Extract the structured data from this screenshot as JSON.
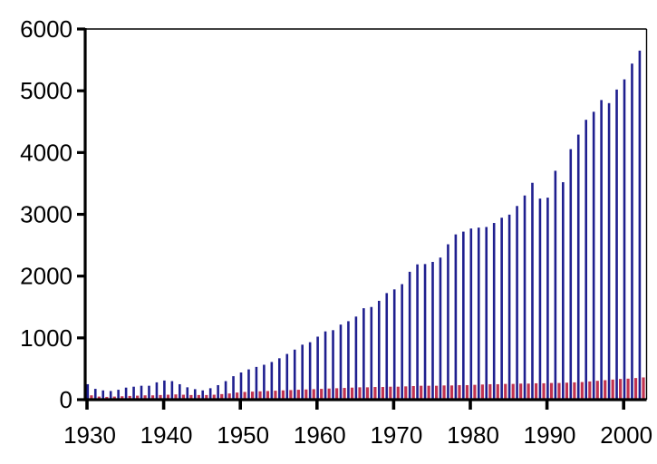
{
  "chart_data": {
    "type": "bar",
    "title": "",
    "xlabel": "",
    "ylabel": "",
    "grid": false,
    "legend": "none",
    "frame": true,
    "background_color": "#ffffff",
    "axis_color": "#000000",
    "ylim": [
      0,
      6000
    ],
    "yticks": [
      0,
      1000,
      2000,
      3000,
      4000,
      5000,
      6000
    ],
    "ytick_labels": [
      "0",
      "1000",
      "2000",
      "3000",
      "4000",
      "5000",
      "6000"
    ],
    "xticks": [
      1930,
      1940,
      1950,
      1960,
      1970,
      1980,
      1990,
      2000
    ],
    "xtick_labels": [
      "1930",
      "1940",
      "1950",
      "1960",
      "1970",
      "1980",
      "1990",
      "2000"
    ],
    "x": [
      1930,
      1931,
      1932,
      1933,
      1934,
      1935,
      1936,
      1937,
      1938,
      1939,
      1940,
      1941,
      1942,
      1943,
      1944,
      1945,
      1946,
      1947,
      1948,
      1949,
      1950,
      1951,
      1952,
      1953,
      1954,
      1955,
      1956,
      1957,
      1958,
      1959,
      1960,
      1961,
      1962,
      1963,
      1964,
      1965,
      1966,
      1967,
      1968,
      1969,
      1970,
      1971,
      1972,
      1973,
      1974,
      1975,
      1976,
      1977,
      1978,
      1979,
      1980,
      1981,
      1982,
      1983,
      1984,
      1985,
      1986,
      1987,
      1988,
      1989,
      1990,
      1991,
      1992,
      1993,
      1994,
      1995,
      1996,
      1997,
      1998,
      1999,
      2000,
      2001,
      2002
    ],
    "series": [
      {
        "name": "navy-series",
        "color": "#1f1f8f",
        "values": [
          250,
          175,
          150,
          140,
          160,
          195,
          210,
          225,
          225,
          280,
          310,
          300,
          250,
          200,
          170,
          150,
          185,
          235,
          300,
          380,
          440,
          490,
          530,
          565,
          610,
          670,
          740,
          810,
          890,
          930,
          1020,
          1105,
          1125,
          1215,
          1270,
          1345,
          1480,
          1500,
          1600,
          1725,
          1785,
          1870,
          2070,
          2190,
          2195,
          2230,
          2300,
          2515,
          2675,
          2720,
          2770,
          2785,
          2795,
          2860,
          2945,
          2995,
          3135,
          3305,
          3510,
          3255,
          3270,
          3705,
          3520,
          4055,
          4290,
          4530,
          4660,
          4850,
          4800,
          5020,
          5185,
          5440,
          5650
        ]
      },
      {
        "name": "crimson-series",
        "color": "#c23350",
        "values": [
          70,
          50,
          45,
          50,
          55,
          60,
          65,
          70,
          70,
          75,
          80,
          85,
          80,
          75,
          75,
          75,
          80,
          90,
          100,
          115,
          125,
          130,
          135,
          140,
          145,
          150,
          155,
          160,
          165,
          170,
          175,
          180,
          185,
          190,
          195,
          200,
          200,
          205,
          205,
          210,
          210,
          215,
          220,
          225,
          225,
          225,
          230,
          230,
          235,
          235,
          240,
          245,
          250,
          250,
          255,
          255,
          260,
          260,
          265,
          265,
          270,
          270,
          275,
          280,
          285,
          295,
          305,
          315,
          325,
          335,
          340,
          350,
          360
        ]
      }
    ]
  }
}
